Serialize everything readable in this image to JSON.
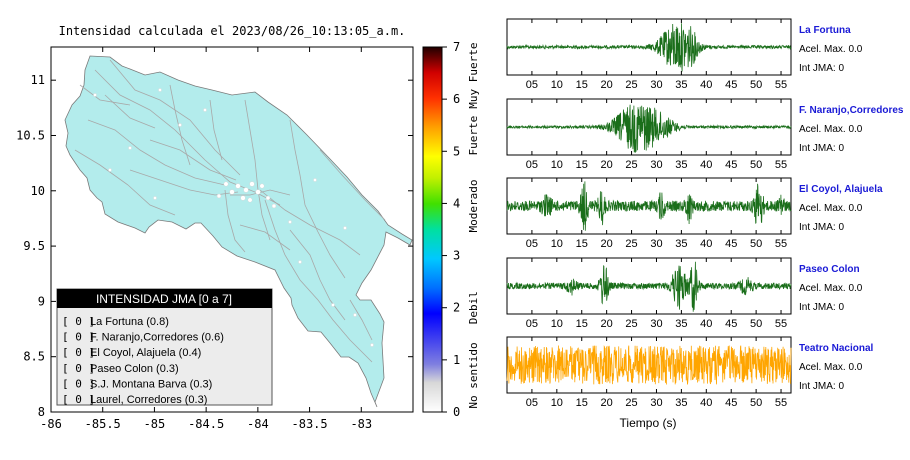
{
  "map": {
    "title": "Intensidad calculada el 2023/08/26_10:13:05_a.m.",
    "x_ticks": [
      "-86",
      "-85.5",
      "-85",
      "-84.5",
      "-84",
      "-83.5",
      "-83"
    ],
    "y_ticks": [
      "11",
      "10.5",
      "10",
      "9.5",
      "9",
      "8.5",
      "8"
    ],
    "x_range": [
      -86,
      -82.5
    ],
    "y_range": [
      8,
      11.3
    ],
    "land_color": "#b3ecec"
  },
  "colorbar": {
    "ticks": [
      "0",
      "1",
      "2",
      "3",
      "4",
      "5",
      "6",
      "7"
    ],
    "range": [
      0,
      7
    ],
    "levels": [
      "No sentido",
      "Debil",
      "Moderado",
      "Fuerte",
      "Muy Fuerte"
    ]
  },
  "legend": {
    "title": "INTENSIDAD JMA [0 a 7]",
    "items": [
      {
        "code": "[ 0 ]",
        "name": "La Fortuna (0.8)"
      },
      {
        "code": "[ 0 ]",
        "name": "F. Naranjo,Corredores (0.6)"
      },
      {
        "code": "[ 0 ]",
        "name": "El Coyol, Alajuela (0.4)"
      },
      {
        "code": "[ 0 ]",
        "name": "Paseo Colon (0.3)"
      },
      {
        "code": "[ 0 ]",
        "name": "S.J. Montana Barva (0.3)"
      },
      {
        "code": "[ 0 ]",
        "name": "Laurel, Corredores (0.3)"
      }
    ]
  },
  "seismograms": {
    "x_ticks": [
      "05",
      "10",
      "15",
      "20",
      "25",
      "30",
      "35",
      "40",
      "45",
      "50",
      "55"
    ],
    "x_label": "Tiempo (s)",
    "stations": [
      {
        "name": "La Fortuna",
        "acel": "Acel. Max. 0.0",
        "int": "Int JMA: 0",
        "color": "#1a6e1a",
        "bursts": [
          [
            34,
            3.2,
            0.92
          ],
          [
            37,
            1.5,
            0.35
          ]
        ],
        "noise": 0.06
      },
      {
        "name": "F. Naranjo,Corredores",
        "acel": "Acel. Max. 0.0",
        "int": "Int JMA: 0",
        "color": "#1a6e1a",
        "bursts": [
          [
            26,
            4.2,
            0.95
          ],
          [
            31,
            3,
            0.3
          ]
        ],
        "noise": 0.05
      },
      {
        "name": "El Coyol, Alajuela",
        "acel": "Acel. Max. 0.0",
        "int": "Int JMA: 0",
        "color": "#1a6e1a",
        "bursts": [
          [
            8,
            1,
            0.3
          ],
          [
            15.5,
            0.7,
            0.9
          ],
          [
            19,
            0.6,
            0.6
          ],
          [
            31,
            0.6,
            0.5
          ],
          [
            36.5,
            0.6,
            0.55
          ],
          [
            50.5,
            0.8,
            0.9
          ],
          [
            55,
            0.5,
            0.45
          ]
        ],
        "noise": 0.2
      },
      {
        "name": "Paseo Colon",
        "acel": "Acel. Max. 0.0",
        "int": "Int JMA: 0",
        "color": "#1a6e1a",
        "bursts": [
          [
            19.5,
            0.8,
            0.85
          ],
          [
            34.5,
            1.4,
            0.8
          ],
          [
            37.5,
            0.8,
            0.95
          ],
          [
            13,
            1,
            0.25
          ],
          [
            48,
            1.2,
            0.25
          ]
        ],
        "noise": 0.12
      },
      {
        "name": "Teatro Nacional",
        "acel": "Acel. Max. 0.0",
        "int": "Int JMA: 0",
        "color": "#ffa500",
        "bursts": [],
        "noise": 0.75
      }
    ]
  }
}
